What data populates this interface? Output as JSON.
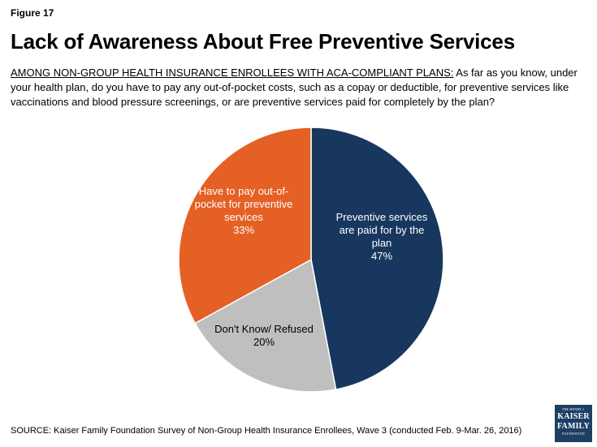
{
  "figure_label": "Figure 17",
  "title": "Lack of Awareness About Free Preventive Services",
  "question": {
    "lead": "AMONG NON-GROUP HEALTH INSURANCE ENROLLEES WITH ACA-COMPLIANT PLANS:",
    "text": " As far as you know, under your health plan, do you have to pay any out-of-pocket costs, such as a copay or deductible, for preventive services like vaccinations and blood pressure screenings, or are preventive services paid for completely by the plan?"
  },
  "chart_data": {
    "type": "pie",
    "title": "Lack of Awareness About Free Preventive Services",
    "start": "12 o'clock, clockwise",
    "slices": [
      {
        "label_lines": [
          "Preventive services",
          "are paid for by the",
          "plan"
        ],
        "value_label": "47%",
        "value": 47,
        "color": "#17375e",
        "text_color": "#ffffff"
      },
      {
        "label_lines": [
          "Don't Know/ Refused"
        ],
        "value_label": "20%",
        "value": 20,
        "color": "#bfbfbf",
        "text_color": "#000000"
      },
      {
        "label_lines": [
          "Have to pay out-of-",
          "pocket for preventive",
          "services"
        ],
        "value_label": "33%",
        "value": 33,
        "color": "#e46025",
        "text_color": "#ffffff"
      }
    ]
  },
  "source": "SOURCE: Kaiser Family Foundation Survey of Non-Group Health Insurance Enrollees, Wave 3 (conducted Feb. 9-Mar. 26, 2016)",
  "logo": {
    "top": "THE HENRY J.",
    "line1": "KAISER",
    "line2": "FAMILY",
    "bottom": "FOUNDATION"
  }
}
